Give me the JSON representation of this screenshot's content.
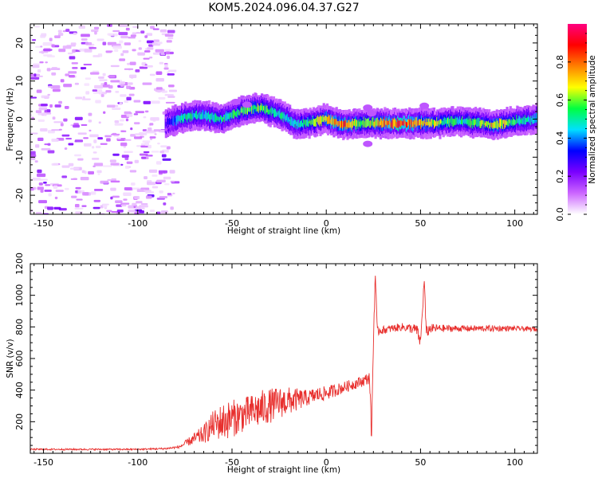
{
  "chart_data": [
    {
      "type": "heatmap",
      "title": "KOM5.2024.096.04.37.G27",
      "xlabel": "Height of straight line (km)",
      "ylabel": "Frequency (Hz)",
      "xlim": [
        -157,
        112
      ],
      "ylim": [
        -25,
        25
      ],
      "xticks": [
        -150,
        -100,
        -50,
        0,
        50,
        100
      ],
      "yticks": [
        -20,
        -10,
        0,
        10,
        20
      ],
      "colorbar": {
        "label": "Normalized spectral amplitude",
        "range": [
          0,
          1
        ],
        "ticks": [
          "0.0",
          "0.2",
          "0.4",
          "0.6",
          "0.8"
        ],
        "colors": [
          "#ffffff",
          "#cc66ff",
          "#7a00ff",
          "#0000ff",
          "#00e0ff",
          "#00ff40",
          "#ffff00",
          "#ff8000",
          "#ff0000",
          "#ff0080"
        ]
      },
      "ridge": {
        "x": [
          -85,
          -75,
          -65,
          -55,
          -45,
          -35,
          -25,
          -15,
          -5,
          0,
          10,
          20,
          30,
          40,
          50,
          60,
          70,
          80,
          90,
          100,
          112
        ],
        "frequency": [
          -1,
          0.5,
          1,
          0,
          2,
          3,
          1.5,
          -1.5,
          -0.5,
          0,
          -1.5,
          -1,
          -1,
          -1.2,
          -1,
          -1,
          -0.5,
          -1,
          -1.5,
          -0.5,
          0
        ],
        "amplitude": [
          0.25,
          0.5,
          0.45,
          0.5,
          0.55,
          0.6,
          0.5,
          0.45,
          0.6,
          0.65,
          0.8,
          0.55,
          0.75,
          0.85,
          0.7,
          0.6,
          0.5,
          0.55,
          0.7,
          0.55,
          0.4
        ]
      },
      "noise_region": {
        "x_range": [
          -157,
          -80
        ],
        "frequency_range": [
          -25,
          25
        ],
        "amplitude_max": 0.25
      }
    },
    {
      "type": "line",
      "title": "",
      "xlabel": "Height of straight line (km)",
      "ylabel": "SNR (v/v)",
      "xlim": [
        -157,
        112
      ],
      "ylim": [
        0,
        1200
      ],
      "xticks": [
        -150,
        -100,
        -50,
        0,
        50,
        100
      ],
      "yticks": [
        200,
        400,
        600,
        800,
        1000,
        1200
      ],
      "line_color": "#e8302e",
      "series": [
        {
          "x": [
            -157,
            -140,
            -120,
            -100,
            -85,
            -78,
            -72,
            -65,
            -60,
            -55,
            -50,
            -45,
            -40,
            -35,
            -30,
            -25,
            -20,
            -15,
            -10,
            -5,
            0,
            5,
            10,
            15,
            20,
            23,
            24,
            25,
            26,
            27,
            28,
            30,
            35,
            40,
            45,
            48,
            50,
            52,
            53,
            55,
            60,
            70,
            80,
            90,
            100,
            112
          ],
          "y": [
            25,
            25,
            25,
            25,
            30,
            40,
            80,
            120,
            180,
            200,
            220,
            240,
            260,
            280,
            300,
            320,
            330,
            340,
            350,
            370,
            380,
            400,
            420,
            440,
            460,
            480,
            100,
            700,
            1150,
            760,
            780,
            780,
            790,
            800,
            790,
            780,
            700,
            1100,
            760,
            790,
            790,
            790,
            790,
            790,
            790,
            785
          ],
          "noise_amplitude": [
            5,
            5,
            5,
            5,
            6,
            8,
            30,
            60,
            90,
            120,
            120,
            110,
            110,
            120,
            110,
            100,
            90,
            70,
            50,
            50,
            45,
            40,
            35,
            35,
            35,
            40,
            60,
            60,
            60,
            40,
            30,
            25,
            25,
            25,
            30,
            40,
            40,
            40,
            40,
            30,
            25,
            20,
            20,
            20,
            15,
            15
          ]
        }
      ]
    }
  ]
}
